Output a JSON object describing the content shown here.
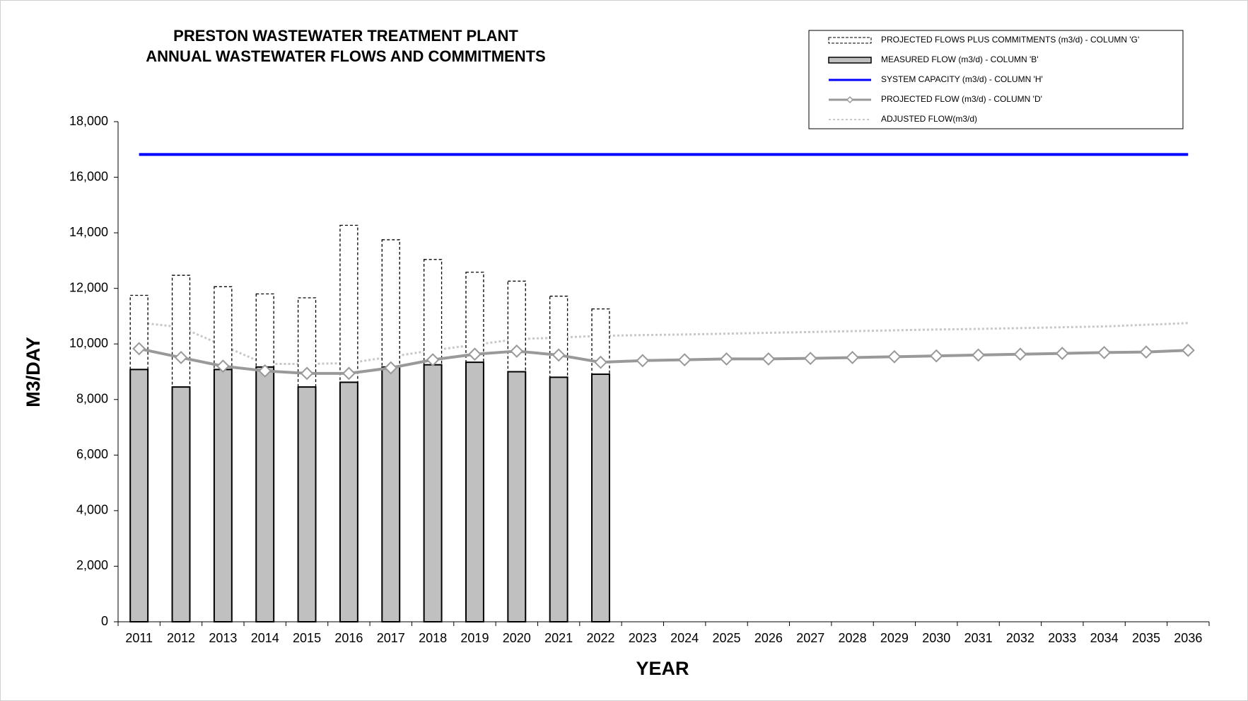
{
  "chart_data": {
    "type": "bar",
    "title": [
      "PRESTON WASTEWATER TREATMENT PLANT",
      "ANNUAL WASTEWATER FLOWS AND COMMITMENTS"
    ],
    "x_label": "YEAR",
    "y_label": "M3/DAY",
    "categories": [
      "2011",
      "2012",
      "2013",
      "2014",
      "2015",
      "2016",
      "2017",
      "2018",
      "2019",
      "2020",
      "2021",
      "2022",
      "2023",
      "2024",
      "2025",
      "2026",
      "2027",
      "2028",
      "2029",
      "2030",
      "2031",
      "2032",
      "2033",
      "2034",
      "2035",
      "2036"
    ],
    "ylim": [
      0,
      18000
    ],
    "yticks": [
      0,
      {
        "value": 2000,
        "label": "2,000"
      },
      {
        "value": 4000,
        "label": "4,000"
      },
      {
        "value": 6000,
        "label": "6,000"
      },
      {
        "value": 8000,
        "label": "8,000"
      },
      {
        "value": 10000,
        "label": "10,000"
      },
      {
        "value": 12000,
        "label": "12,000"
      },
      {
        "value": 14000,
        "label": "14,000"
      },
      {
        "value": 16000,
        "label": "16,000"
      },
      {
        "value": 18000,
        "label": "18,000"
      }
    ],
    "legend": "top-right",
    "series": [
      {
        "name": "PROJECTED FLOWS PLUS COMMITMENTS (m3/d) - COLUMN 'G'",
        "type": "bar",
        "style": "dashed",
        "color": "#ffffff",
        "values": [
          11750,
          12470,
          12060,
          11800,
          11660,
          14270,
          13750,
          13040,
          12580,
          12260,
          11720,
          11260,
          null,
          null,
          null,
          null,
          null,
          null,
          null,
          null,
          null,
          null,
          null,
          null,
          null,
          null
        ]
      },
      {
        "name": "MEASURED FLOW (m3/d) - COLUMN 'B'",
        "type": "bar",
        "style": "solid",
        "color": "#c0c0c0",
        "values": [
          9080,
          8450,
          9080,
          9170,
          8450,
          8620,
          9170,
          9250,
          9340,
          9000,
          8800,
          8910,
          null,
          null,
          null,
          null,
          null,
          null,
          null,
          null,
          null,
          null,
          null,
          null,
          null,
          null
        ]
      },
      {
        "name": "SYSTEM CAPACITY (m3/d) - COLUMN 'H'",
        "type": "line",
        "style": "solid",
        "color": "#0000ff",
        "values": [
          16820,
          16820,
          16820,
          16820,
          16820,
          16820,
          16820,
          16820,
          16820,
          16820,
          16820,
          16820,
          16820,
          16820,
          16820,
          16820,
          16820,
          16820,
          16820,
          16820,
          16820,
          16820,
          16820,
          16820,
          16820,
          16820
        ]
      },
      {
        "name": "PROJECTED FLOW (m3/d) - COLUMN 'D'",
        "type": "line",
        "style": "diamond",
        "color": "#999999",
        "values": [
          9830,
          9510,
          9200,
          9030,
          8940,
          8940,
          9140,
          9430,
          9630,
          9740,
          9600,
          9340,
          9400,
          9430,
          9460,
          9460,
          9480,
          9510,
          9540,
          9570,
          9600,
          9630,
          9660,
          9690,
          9710,
          9770
        ]
      },
      {
        "name": "ADJUSTED FLOW(m3/d)",
        "type": "line",
        "style": "dotted",
        "color": "#c8c8c8",
        "values": [
          10770,
          10600,
          9940,
          9280,
          9280,
          9310,
          9540,
          9770,
          9970,
          10170,
          10230,
          10290,
          10320,
          10340,
          10370,
          10400,
          10430,
          10460,
          10490,
          10520,
          10540,
          10570,
          10600,
          10630,
          10690,
          10750
        ]
      }
    ]
  }
}
